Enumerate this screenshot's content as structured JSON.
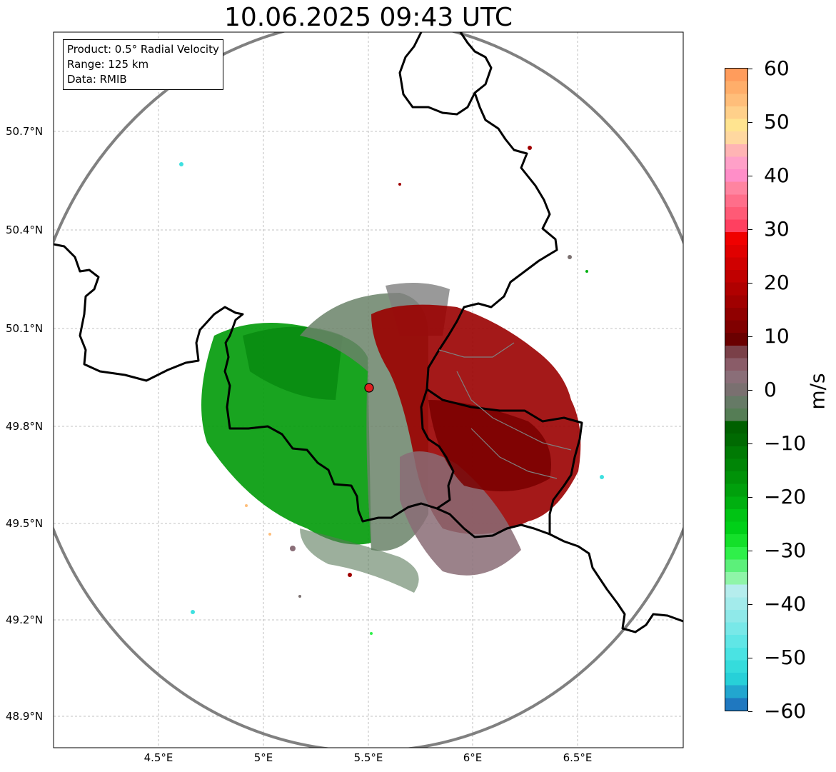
{
  "title": "10.06.2025 09:43 UTC",
  "info_box": {
    "product": "Product: 0.5° Radial Velocity",
    "range": "Range: 125 km",
    "data": "Data: RMIB"
  },
  "map": {
    "lat_ticks": [
      "50.7°N",
      "50.4°N",
      "50.1°N",
      "49.8°N",
      "49.5°N",
      "49.2°N",
      "48.9°N"
    ],
    "lon_ticks": [
      "4.5°E",
      "5°E",
      "5.5°E",
      "6°E",
      "6.5°E"
    ],
    "radar_site": {
      "lon": 5.505,
      "lat": 49.914
    },
    "range_ring_km": 125,
    "extent": {
      "lon_min": 4.0,
      "lon_max": 7.0,
      "lat_min": 48.8,
      "lat_max": 51.0
    },
    "grid": true
  },
  "colorbar": {
    "label": "m/s",
    "ticks": [
      "60",
      "50",
      "40",
      "30",
      "20",
      "10",
      "0",
      "−10",
      "−20",
      "−30",
      "−40",
      "−50",
      "−60"
    ],
    "range": [
      -60,
      60
    ],
    "colors_bottom_to_top": [
      "#1f78c0",
      "#22a6cf",
      "#27d0d8",
      "#35dcdc",
      "#4ae3e3",
      "#60e6e6",
      "#78e8e8",
      "#8fe9e9",
      "#a3ebeb",
      "#b5eded",
      "#8ff5a8",
      "#5cf07a",
      "#2ff04a",
      "#14e02a",
      "#00d018",
      "#00c414",
      "#00b010",
      "#00a00c",
      "#009208",
      "#008506",
      "#007a04",
      "#006a02",
      "#006000",
      "#557d55",
      "#667a66",
      "#7a7070",
      "#8a6e78",
      "#8a5c68",
      "#7a4048",
      "#6a0000",
      "#800000",
      "#900000",
      "#a00000",
      "#b00000",
      "#c00000",
      "#d00000",
      "#e00000",
      "#f00000",
      "#ff4060",
      "#ff5a76",
      "#ff6e8a",
      "#ff84a0",
      "#ff8ec8",
      "#ffa0c8",
      "#ffb4b4",
      "#ffd8a0",
      "#ffe490",
      "#ffd08a",
      "#ffbe7a",
      "#ffae6a",
      "#ff9c5c"
    ]
  }
}
